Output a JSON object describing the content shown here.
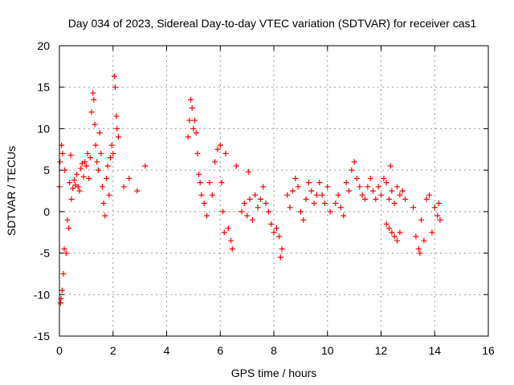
{
  "chart_data": {
    "type": "scatter",
    "title": "Day 034 of 2023, Sidereal Day-to-day VTEC variation (SDTVAR) for receiver cas1",
    "xlabel": "GPS time / hours",
    "ylabel": "SDTVAR / TECUs",
    "xlim": [
      0,
      16
    ],
    "ylim": [
      -15,
      20
    ],
    "xticks": [
      0,
      2,
      4,
      6,
      8,
      10,
      12,
      14,
      16
    ],
    "yticks": [
      -15,
      -10,
      -5,
      0,
      5,
      10,
      15,
      20
    ],
    "xtick_labels": [
      "0",
      "2",
      "4",
      "6",
      "8",
      "10",
      "12",
      "14",
      "16"
    ],
    "ytick_labels": [
      "-15",
      "-10",
      "-5",
      "0",
      "5",
      "10",
      "15",
      "20"
    ],
    "grid": true,
    "marker": "+",
    "marker_color": "#ff0000",
    "series": [
      {
        "name": "SDTVAR",
        "points": [
          [
            0.0,
            3.0
          ],
          [
            0.02,
            6.0
          ],
          [
            0.04,
            -11.0
          ],
          [
            0.06,
            -10.5
          ],
          [
            0.08,
            8.0
          ],
          [
            0.1,
            -9.5
          ],
          [
            0.12,
            7.0
          ],
          [
            0.15,
            -7.5
          ],
          [
            0.18,
            -4.5
          ],
          [
            0.2,
            5.0
          ],
          [
            0.25,
            -5.0
          ],
          [
            0.3,
            -1.0
          ],
          [
            0.35,
            -2.0
          ],
          [
            0.38,
            3.5
          ],
          [
            0.42,
            6.8
          ],
          [
            0.45,
            1.5
          ],
          [
            0.5,
            2.8
          ],
          [
            0.55,
            3.8
          ],
          [
            0.6,
            3.2
          ],
          [
            0.65,
            4.5
          ],
          [
            0.7,
            3.0
          ],
          [
            0.75,
            2.5
          ],
          [
            0.8,
            5.2
          ],
          [
            0.85,
            5.8
          ],
          [
            0.9,
            4.2
          ],
          [
            0.95,
            6.0
          ],
          [
            1.0,
            5.5
          ],
          [
            1.05,
            7.0
          ],
          [
            1.1,
            4.0
          ],
          [
            1.15,
            6.5
          ],
          [
            1.2,
            12.0
          ],
          [
            1.25,
            14.3
          ],
          [
            1.28,
            13.5
          ],
          [
            1.32,
            10.5
          ],
          [
            1.35,
            8.0
          ],
          [
            1.4,
            6.0
          ],
          [
            1.45,
            5.0
          ],
          [
            1.5,
            9.5
          ],
          [
            1.55,
            7.0
          ],
          [
            1.6,
            3.0
          ],
          [
            1.65,
            1.0
          ],
          [
            1.7,
            -0.5
          ],
          [
            1.75,
            4.0
          ],
          [
            1.8,
            5.5
          ],
          [
            1.85,
            2.0
          ],
          [
            1.9,
            6.5
          ],
          [
            1.95,
            8.0
          ],
          [
            2.0,
            7.0
          ],
          [
            2.05,
            16.3
          ],
          [
            2.08,
            15.0
          ],
          [
            2.12,
            11.5
          ],
          [
            2.15,
            10.0
          ],
          [
            2.2,
            9.0
          ],
          [
            2.4,
            3.0
          ],
          [
            2.6,
            4.0
          ],
          [
            2.9,
            2.5
          ],
          [
            3.2,
            5.5
          ],
          [
            4.8,
            9.0
          ],
          [
            4.85,
            11.0
          ],
          [
            4.9,
            13.5
          ],
          [
            4.95,
            12.5
          ],
          [
            5.0,
            10.0
          ],
          [
            5.05,
            11.0
          ],
          [
            5.1,
            9.5
          ],
          [
            5.15,
            7.0
          ],
          [
            5.2,
            4.5
          ],
          [
            5.25,
            3.5
          ],
          [
            5.3,
            2.0
          ],
          [
            5.4,
            1.0
          ],
          [
            5.5,
            -0.5
          ],
          [
            5.6,
            3.5
          ],
          [
            5.7,
            2.0
          ],
          [
            5.8,
            6.0
          ],
          [
            5.9,
            7.5
          ],
          [
            6.0,
            8.0
          ],
          [
            6.05,
            3.5
          ],
          [
            6.1,
            0.0
          ],
          [
            6.15,
            -2.5
          ],
          [
            6.2,
            7.0
          ],
          [
            6.3,
            -2.0
          ],
          [
            6.4,
            -3.5
          ],
          [
            6.45,
            -4.5
          ],
          [
            6.6,
            5.5
          ],
          [
            6.8,
            0.0
          ],
          [
            6.9,
            1.0
          ],
          [
            7.0,
            -0.5
          ],
          [
            7.05,
            4.8
          ],
          [
            7.1,
            1.5
          ],
          [
            7.2,
            -1.0
          ],
          [
            7.3,
            2.0
          ],
          [
            7.4,
            0.5
          ],
          [
            7.5,
            1.5
          ],
          [
            7.6,
            3.0
          ],
          [
            7.7,
            1.0
          ],
          [
            7.8,
            0.0
          ],
          [
            7.9,
            -1.5
          ],
          [
            8.0,
            -2.5
          ],
          [
            8.1,
            -2.0
          ],
          [
            8.2,
            -3.0
          ],
          [
            8.25,
            -5.5
          ],
          [
            8.3,
            -4.5
          ],
          [
            8.5,
            2.0
          ],
          [
            8.6,
            0.5
          ],
          [
            8.7,
            2.5
          ],
          [
            8.8,
            4.0
          ],
          [
            8.9,
            3.0
          ],
          [
            9.0,
            0.0
          ],
          [
            9.1,
            -1.0
          ],
          [
            9.2,
            1.5
          ],
          [
            9.3,
            3.5
          ],
          [
            9.4,
            2.5
          ],
          [
            9.5,
            1.0
          ],
          [
            9.6,
            2.0
          ],
          [
            9.7,
            3.5
          ],
          [
            9.8,
            2.0
          ],
          [
            9.9,
            1.0
          ],
          [
            10.0,
            3.0
          ],
          [
            10.1,
            0.0
          ],
          [
            10.3,
            1.0
          ],
          [
            10.4,
            2.0
          ],
          [
            10.5,
            0.5
          ],
          [
            10.6,
            -0.5
          ],
          [
            10.7,
            3.5
          ],
          [
            10.8,
            2.5
          ],
          [
            10.9,
            5.0
          ],
          [
            11.0,
            6.0
          ],
          [
            11.1,
            4.0
          ],
          [
            11.2,
            3.0
          ],
          [
            11.3,
            2.0
          ],
          [
            11.4,
            1.5
          ],
          [
            11.5,
            3.0
          ],
          [
            11.6,
            4.0
          ],
          [
            11.7,
            2.5
          ],
          [
            11.8,
            1.5
          ],
          [
            11.9,
            3.0
          ],
          [
            12.0,
            2.0
          ],
          [
            12.1,
            4.0
          ],
          [
            12.2,
            3.5
          ],
          [
            12.3,
            1.5
          ],
          [
            12.35,
            5.5
          ],
          [
            12.4,
            2.5
          ],
          [
            12.5,
            1.0
          ],
          [
            12.6,
            3.0
          ],
          [
            12.7,
            2.0
          ],
          [
            12.8,
            2.5
          ],
          [
            12.9,
            1.5
          ],
          [
            12.2,
            -1.5
          ],
          [
            12.3,
            -2.0
          ],
          [
            12.4,
            -2.5
          ],
          [
            12.5,
            -3.0
          ],
          [
            12.6,
            -3.5
          ],
          [
            12.7,
            -2.5
          ],
          [
            13.2,
            0.5
          ],
          [
            13.3,
            -3.0
          ],
          [
            13.4,
            -4.5
          ],
          [
            13.45,
            -5.0
          ],
          [
            13.5,
            -1.0
          ],
          [
            13.6,
            -3.5
          ],
          [
            13.7,
            1.5
          ],
          [
            13.8,
            2.0
          ],
          [
            13.9,
            -2.5
          ],
          [
            14.0,
            0.5
          ],
          [
            14.1,
            -0.5
          ],
          [
            14.15,
            1.0
          ],
          [
            14.2,
            -1.0
          ]
        ]
      }
    ]
  }
}
